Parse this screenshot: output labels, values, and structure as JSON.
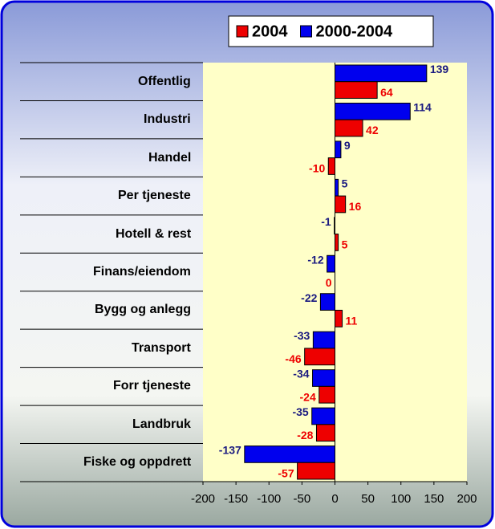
{
  "chart_data": {
    "type": "hbar",
    "categories": [
      "Offentlig",
      "Industri",
      "Handel",
      "Per tjeneste",
      "Hotell & rest",
      "Finans/eiendom",
      "Bygg og anlegg",
      "Transport",
      "Forr tjeneste",
      "Landbruk",
      "Fiske og oppdrett"
    ],
    "series": [
      {
        "name": "2000-2004",
        "color": "#0000ee",
        "label_color": "#1a1a80",
        "values": [
          139,
          114,
          9,
          5,
          -1,
          -12,
          -22,
          -33,
          -34,
          -35,
          -137
        ]
      },
      {
        "name": "2004",
        "color": "#ee0000",
        "label_color": "#ee0000",
        "values": [
          64,
          42,
          -10,
          16,
          5,
          0,
          11,
          -46,
          -24,
          -28,
          -57
        ]
      }
    ],
    "legend_order": [
      1,
      0
    ],
    "xlim": [
      -200,
      200
    ],
    "xticks": [
      -200,
      -150,
      -100,
      -50,
      0,
      50,
      100,
      150,
      200
    ]
  }
}
